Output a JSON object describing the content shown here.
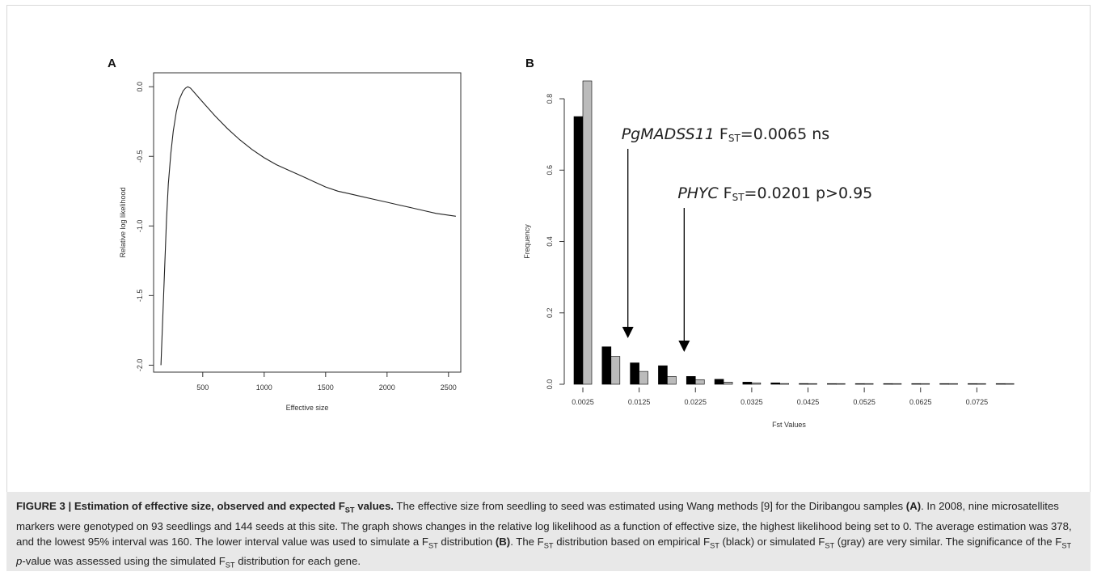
{
  "figure": {
    "panel_a_label": "A",
    "panel_b_label": "B",
    "caption": {
      "heading_pre": "FIGURE 3 | Estimation of effective size, observed and expected F",
      "heading_sub": "ST",
      "heading_post": " values.",
      "s1": " The effective size from seedling to seed was estimated using Wang methods [9] for the Diribangou samples ",
      "s1_ref": "(A)",
      "s2": ". In 2008, nine microsatellites markers were genotyped on 93 seedlings and 144 seeds at this site. The graph shows changes in the relative log likelihood as a function of effective size, the highest likelihood being set to 0. The average estimation was 378, and the lowest 95% interval was 160. The lower interval value was used to simulate a F",
      "s2_sub": "ST",
      "s3": " distribution ",
      "s3_ref": "(B)",
      "s4": ". The F",
      "s4_sub": "ST",
      "s5": " distribution based on empirical F",
      "s5_sub": "ST",
      "s6": " (black) or simulated F",
      "s6_sub": "ST",
      "s7": " (gray) are very similar. The significance of the F",
      "s7_sub": "ST",
      "s8_pre_p": " ",
      "s8_p": "p",
      "s8": "-value was assessed using the simulated F",
      "s8_sub": "ST",
      "s9": " distribution for each gene."
    }
  },
  "chart_data": [
    {
      "type": "line",
      "panel": "A",
      "xlabel": "Effective size",
      "ylabel": "Relative log likelihood",
      "xlim": [
        100,
        2600
      ],
      "ylim": [
        -2.05,
        0.1
      ],
      "xticks": [
        500,
        1000,
        1500,
        2000,
        2500
      ],
      "xtick_labels": [
        "500",
        "1000",
        "1500",
        "2000",
        "2500"
      ],
      "yticks": [
        0.0,
        -0.5,
        -1.0,
        -1.5,
        -2.0
      ],
      "ytick_labels": [
        "0.0",
        "-0.5",
        "-1.0",
        "-1.5",
        "-2.0"
      ],
      "series": [
        {
          "x": [
            160,
            175,
            190,
            205,
            220,
            240,
            260,
            285,
            310,
            340,
            360,
            378,
            400,
            430,
            470,
            520,
            600,
            700,
            800,
            900,
            1000,
            1100,
            1200,
            1300,
            1400,
            1500,
            1600,
            1700,
            1800,
            1900,
            2000,
            2100,
            2200,
            2300,
            2400,
            2560
          ],
          "y": [
            -2.0,
            -1.65,
            -1.3,
            -0.95,
            -0.7,
            -0.48,
            -0.32,
            -0.18,
            -0.09,
            -0.03,
            -0.01,
            0.0,
            -0.01,
            -0.04,
            -0.08,
            -0.13,
            -0.21,
            -0.3,
            -0.38,
            -0.45,
            -0.51,
            -0.56,
            -0.6,
            -0.64,
            -0.68,
            -0.72,
            -0.75,
            -0.77,
            -0.79,
            -0.81,
            -0.83,
            -0.85,
            -0.87,
            -0.89,
            -0.91,
            -0.93
          ]
        }
      ],
      "grid": false
    },
    {
      "type": "bar",
      "panel": "B",
      "xlabel": "Fst Values",
      "ylabel": "Frequency",
      "ylim": [
        0,
        0.85
      ],
      "yticks": [
        0.0,
        0.2,
        0.4,
        0.6,
        0.8
      ],
      "ytick_labels": [
        "0.0",
        "0.2",
        "0.4",
        "0.6",
        "0.8"
      ],
      "xtick_labels": [
        "0.0025",
        "0.0125",
        "0.0225",
        "0.0325",
        "0.0425",
        "0.0525",
        "0.0625",
        "0.0725"
      ],
      "series": [
        {
          "color": "#000000",
          "values": [
            0.75,
            0.105,
            0.06,
            0.052,
            0.022,
            0.014,
            0.006,
            0.004,
            0.002,
            0.001,
            0.001,
            0.0005,
            0.0005,
            0.0005,
            0.0005,
            0.0005
          ]
        },
        {
          "color": "#bbbbbb",
          "values": [
            0.85,
            0.078,
            0.036,
            0.022,
            0.013,
            0.006,
            0.004,
            0.002,
            0.001,
            0.0005,
            0.0005,
            0.0005,
            0.0005,
            0.0005,
            0.0005,
            0.0005
          ]
        }
      ],
      "annotations": [
        {
          "gene": "PgMADSS11",
          "f": "F",
          "sub": "ST",
          "text": "=0.0065 ns",
          "bin": 1.6
        },
        {
          "gene": "PHYC",
          "f": "F",
          "sub": "ST",
          "text": "=0.0201 p>0.95",
          "bin": 3.6
        }
      ],
      "grid": false
    }
  ]
}
